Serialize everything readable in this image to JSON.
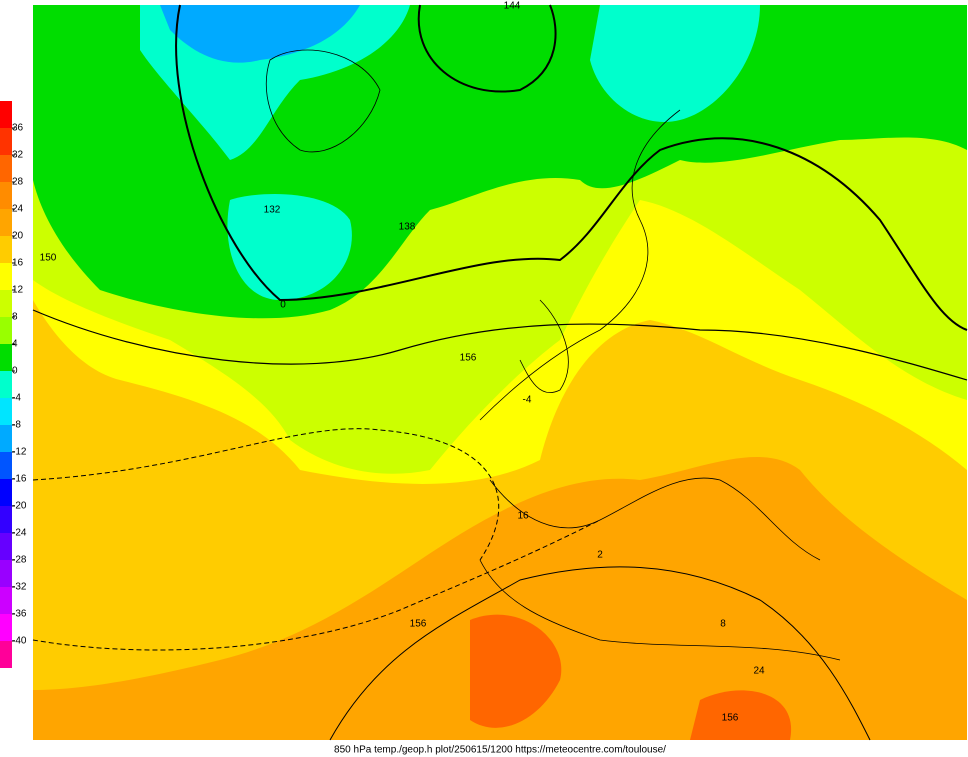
{
  "colorbar": {
    "labels": [
      36,
      32,
      28,
      24,
      20,
      16,
      12,
      8,
      4,
      0,
      -4,
      -8,
      -12,
      -16,
      -20,
      -24,
      -28,
      -32,
      -36,
      -40
    ],
    "colors": [
      "#ff0000",
      "#ff3300",
      "#ff6600",
      "#ff8c00",
      "#ffa500",
      "#ffcc00",
      "#ffff00",
      "#ccff00",
      "#99ff00",
      "#00dd00",
      "#00ffcc",
      "#00e5ff",
      "#00aaff",
      "#0055ff",
      "#0000ff",
      "#3300ff",
      "#6600ff",
      "#9900ff",
      "#cc00ff",
      "#ff00ff",
      "#ff0099"
    ]
  },
  "contour_labels": [
    "144",
    "150",
    "132",
    "138",
    "156",
    "156",
    "156",
    "0",
    "16",
    "24",
    "8",
    "2",
    "-4"
  ],
  "caption": "850 hPa temp./geop.h plot/250615/1200 https://meteocentre.com/toulouse/"
}
